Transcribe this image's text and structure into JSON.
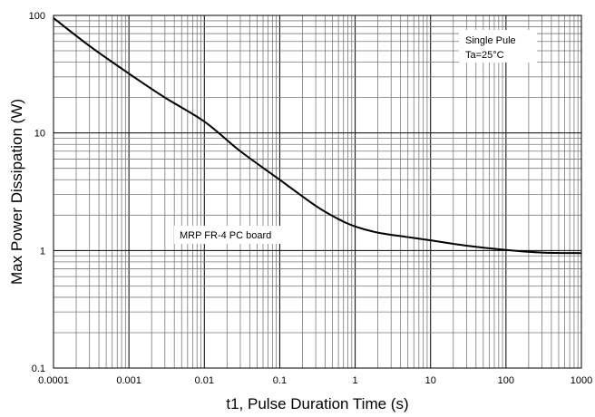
{
  "chart_data": {
    "type": "line",
    "xscale": "log",
    "yscale": "log",
    "xlim": [
      0.0001,
      1000
    ],
    "ylim": [
      0.1,
      100
    ],
    "grid": true,
    "xlabel": "t1, Pulse Duration Time (s)",
    "ylabel": "Max Power Dissipation (W)",
    "x_ticks": [
      "0.0001",
      "0.001",
      "0.01",
      "0.1",
      "1",
      "10",
      "100",
      "1000"
    ],
    "y_ticks": [
      "0.1",
      "1",
      "10",
      "100"
    ],
    "annotations": {
      "conditions_line1": "Single Pule",
      "conditions_line2": "Ta=25°C",
      "board_label": "MRP FR-4 PC board"
    },
    "series": [
      {
        "color": "#000000",
        "x": [
          0.0001,
          0.0003,
          0.001,
          0.003,
          0.01,
          0.03,
          0.1,
          0.3,
          0.6,
          1,
          2,
          5,
          10,
          30,
          100,
          300,
          1000
        ],
        "y": [
          95,
          55,
          32,
          20,
          12.5,
          7,
          4,
          2.4,
          1.85,
          1.6,
          1.42,
          1.3,
          1.22,
          1.1,
          1.01,
          0.96,
          0.95
        ]
      }
    ]
  }
}
